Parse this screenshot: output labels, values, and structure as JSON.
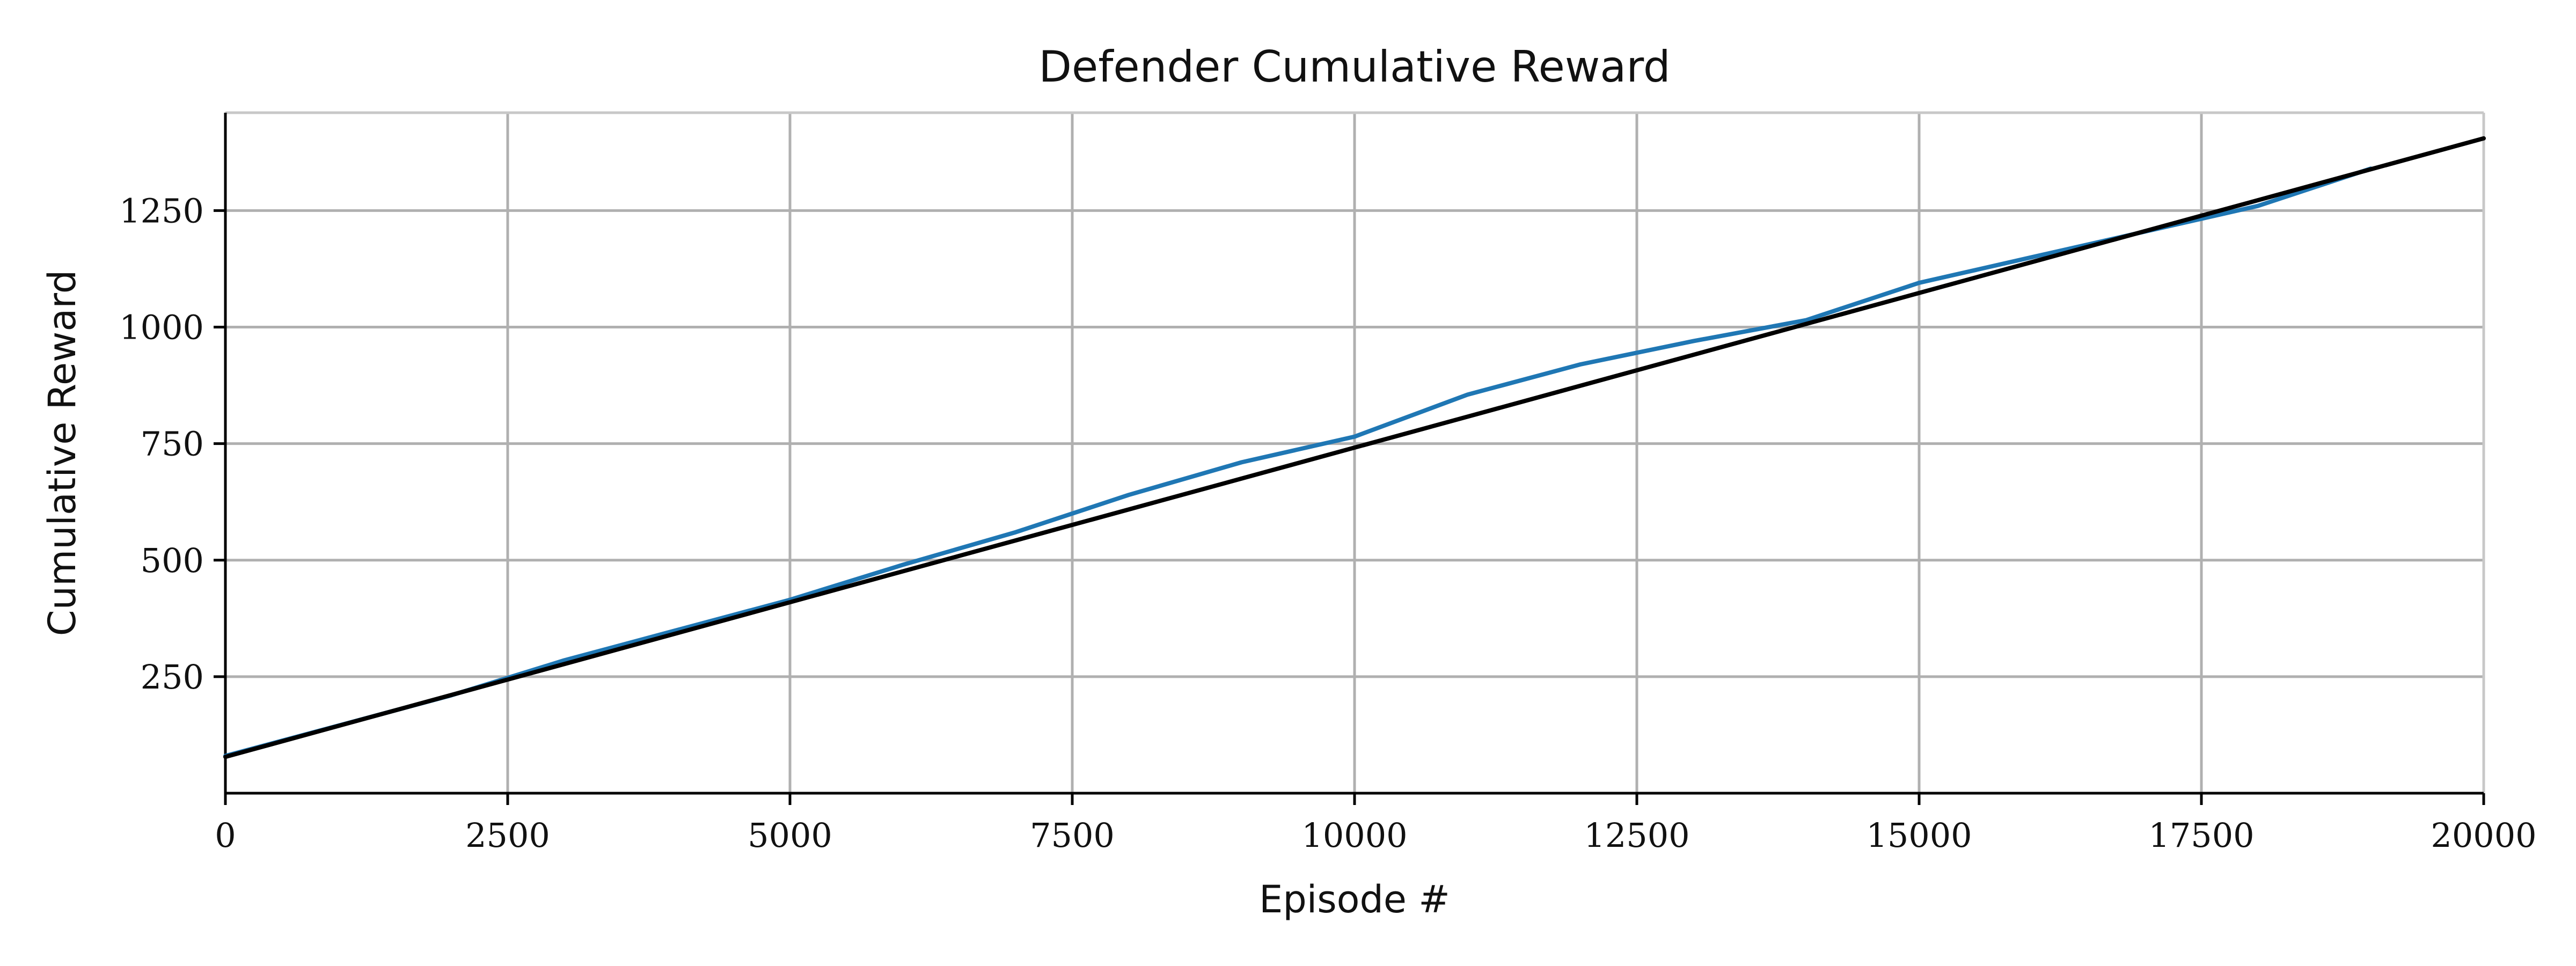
{
  "chart_data": {
    "type": "line",
    "title": "Defender Cumulative Reward",
    "xlabel": "Episode #",
    "ylabel": "Cumulative Reward",
    "xlim": [
      0,
      20000
    ],
    "ylim": [
      0,
      1460
    ],
    "xticks": [
      0,
      2500,
      5000,
      7500,
      10000,
      12500,
      15000,
      17500,
      20000
    ],
    "yticks": [
      250,
      500,
      750,
      1000,
      1250
    ],
    "grid": true,
    "series": [
      {
        "color": "#1f77b4",
        "x": [
          0,
          1000,
          2000,
          3000,
          4000,
          5000,
          6000,
          7000,
          8000,
          9000,
          10000,
          11000,
          12000,
          13000,
          14000,
          15000,
          16000,
          17000,
          18000,
          19000
        ],
        "y": [
          80,
          145,
          210,
          285,
          350,
          415,
          490,
          560,
          640,
          710,
          765,
          855,
          920,
          970,
          1015,
          1095,
          1150,
          1205,
          1260,
          1340
        ]
      },
      {
        "color": "#000000",
        "x": [
          0,
          20000
        ],
        "y": [
          78,
          1405
        ]
      }
    ]
  }
}
